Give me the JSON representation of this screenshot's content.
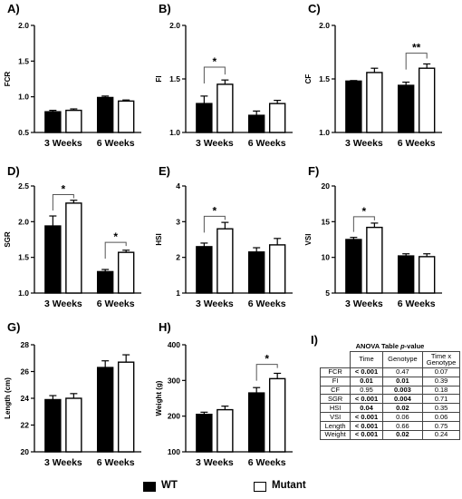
{
  "colors": {
    "wt": "#000000",
    "mutant": "#ffffff",
    "axis": "#000000"
  },
  "legend": {
    "wt": "WT",
    "mutant": "Mutant"
  },
  "chart_data": [
    {
      "type": "bar",
      "panel": "A)",
      "ylabel": "FCR",
      "ylim": [
        0.5,
        2.0
      ],
      "yticks": [
        "0.5",
        "1.0",
        "1.5",
        "2.0"
      ],
      "categories": [
        "3 Weeks",
        "6 Weeks"
      ],
      "series": [
        {
          "name": "WT",
          "values": [
            0.79,
            0.99
          ],
          "errors": [
            0.02,
            0.02
          ]
        },
        {
          "name": "Mutant",
          "values": [
            0.81,
            0.94
          ],
          "errors": [
            0.02,
            0.015
          ]
        }
      ],
      "significance": []
    },
    {
      "type": "bar",
      "panel": "B)",
      "ylabel": "FI",
      "ylim": [
        1.0,
        2.0
      ],
      "yticks": [
        "1.0",
        "1.5",
        "2.0"
      ],
      "categories": [
        "3 Weeks",
        "6 Weeks"
      ],
      "series": [
        {
          "name": "WT",
          "values": [
            1.27,
            1.16
          ],
          "errors": [
            0.07,
            0.04
          ]
        },
        {
          "name": "Mutant",
          "values": [
            1.45,
            1.27
          ],
          "errors": [
            0.04,
            0.03
          ]
        }
      ],
      "significance": [
        {
          "category": 0,
          "label": "*",
          "y": 1.61
        }
      ]
    },
    {
      "type": "bar",
      "panel": "C)",
      "ylabel": "CF",
      "ylim": [
        1.0,
        2.0
      ],
      "yticks": [
        "1.0",
        "1.5",
        "2.0"
      ],
      "categories": [
        "3 Weeks",
        "6 Weeks"
      ],
      "series": [
        {
          "name": "WT",
          "values": [
            1.48,
            1.44
          ],
          "errors": [
            0.005,
            0.03
          ]
        },
        {
          "name": "Mutant",
          "values": [
            1.56,
            1.6
          ],
          "errors": [
            0.04,
            0.04
          ]
        }
      ],
      "significance": [
        {
          "category": 1,
          "label": "**",
          "y": 1.74
        }
      ]
    },
    {
      "type": "bar",
      "panel": "D)",
      "ylabel": "SGR",
      "ylim": [
        1.0,
        2.5
      ],
      "yticks": [
        "1.0",
        "1.5",
        "2.0",
        "2.5"
      ],
      "categories": [
        "3 Weeks",
        "6 Weeks"
      ],
      "series": [
        {
          "name": "WT",
          "values": [
            1.94,
            1.3
          ],
          "errors": [
            0.14,
            0.03
          ]
        },
        {
          "name": "Mutant",
          "values": [
            2.26,
            1.57
          ],
          "errors": [
            0.04,
            0.03
          ]
        }
      ],
      "significance": [
        {
          "category": 0,
          "label": "*",
          "y": 2.38
        },
        {
          "category": 1,
          "label": "*",
          "y": 1.71
        }
      ]
    },
    {
      "type": "bar",
      "panel": "E)",
      "ylabel": "HSI",
      "ylim": [
        1,
        4
      ],
      "yticks": [
        "1",
        "2",
        "3",
        "4"
      ],
      "categories": [
        "3 Weeks",
        "6 Weeks"
      ],
      "series": [
        {
          "name": "WT",
          "values": [
            2.3,
            2.15
          ],
          "errors": [
            0.1,
            0.12
          ]
        },
        {
          "name": "Mutant",
          "values": [
            2.8,
            2.35
          ],
          "errors": [
            0.18,
            0.18
          ]
        }
      ],
      "significance": [
        {
          "category": 0,
          "label": "*",
          "y": 3.15
        }
      ]
    },
    {
      "type": "bar",
      "panel": "F)",
      "ylabel": "VSI",
      "ylim": [
        5,
        20
      ],
      "yticks": [
        "5",
        "10",
        "15",
        "20"
      ],
      "categories": [
        "3 Weeks",
        "6 Weeks"
      ],
      "series": [
        {
          "name": "WT",
          "values": [
            12.5,
            10.2
          ],
          "errors": [
            0.3,
            0.3
          ]
        },
        {
          "name": "Mutant",
          "values": [
            14.2,
            10.1
          ],
          "errors": [
            0.6,
            0.4
          ]
        }
      ],
      "significance": [
        {
          "category": 0,
          "label": "*",
          "y": 15.7
        }
      ]
    },
    {
      "type": "bar",
      "panel": "G)",
      "ylabel": "Length (cm)",
      "ylim": [
        20,
        28
      ],
      "yticks": [
        "20",
        "22",
        "24",
        "26",
        "28"
      ],
      "categories": [
        "3 Weeks",
        "6 Weeks"
      ],
      "series": [
        {
          "name": "WT",
          "values": [
            23.9,
            26.3
          ],
          "errors": [
            0.3,
            0.5
          ]
        },
        {
          "name": "Mutant",
          "values": [
            24.0,
            26.7
          ],
          "errors": [
            0.35,
            0.55
          ]
        }
      ],
      "significance": []
    },
    {
      "type": "bar",
      "panel": "H)",
      "ylabel": "Weight (g)",
      "ylim": [
        100,
        400
      ],
      "yticks": [
        "100",
        "200",
        "300",
        "400"
      ],
      "categories": [
        "3 Weeks",
        "6 Weeks"
      ],
      "series": [
        {
          "name": "WT",
          "values": [
            205,
            265
          ],
          "errors": [
            6,
            15
          ]
        },
        {
          "name": "Mutant",
          "values": [
            218,
            305
          ],
          "errors": [
            10,
            15
          ]
        }
      ],
      "significance": [
        {
          "category": 1,
          "label": "*",
          "y": 345
        }
      ]
    }
  ],
  "anova": {
    "panel": "I)",
    "title": "ANOVA Table ",
    "title_italic": "p",
    "title_end": "-value",
    "headers": [
      "",
      "Time",
      "Genotype",
      "Time x Genotype"
    ],
    "rows": [
      {
        "label": "FCR",
        "cells": [
          {
            "v": "< 0.001",
            "b": true
          },
          {
            "v": "0.47",
            "b": false
          },
          {
            "v": "0.07",
            "b": false
          }
        ]
      },
      {
        "label": "FI",
        "cells": [
          {
            "v": "0.01",
            "b": true
          },
          {
            "v": "0.01",
            "b": true
          },
          {
            "v": "0.39",
            "b": false
          }
        ]
      },
      {
        "label": "CF",
        "cells": [
          {
            "v": "0.95",
            "b": false
          },
          {
            "v": "0.003",
            "b": true
          },
          {
            "v": "0.18",
            "b": false
          }
        ]
      },
      {
        "label": "SGR",
        "cells": [
          {
            "v": "< 0.001",
            "b": true
          },
          {
            "v": "0.004",
            "b": true
          },
          {
            "v": "0.71",
            "b": false
          }
        ]
      },
      {
        "label": "HSI",
        "cells": [
          {
            "v": "0.04",
            "b": true
          },
          {
            "v": "0.02",
            "b": true
          },
          {
            "v": "0.35",
            "b": false
          }
        ]
      },
      {
        "label": "VSI",
        "cells": [
          {
            "v": "< 0.001",
            "b": true
          },
          {
            "v": "0.06",
            "b": false
          },
          {
            "v": "0.06",
            "b": false
          }
        ]
      },
      {
        "label": "Length",
        "cells": [
          {
            "v": "< 0.001",
            "b": true
          },
          {
            "v": "0.66",
            "b": false
          },
          {
            "v": "0.75",
            "b": false
          }
        ]
      },
      {
        "label": "Weight",
        "cells": [
          {
            "v": "< 0.001",
            "b": true
          },
          {
            "v": "0.02",
            "b": true
          },
          {
            "v": "0.24",
            "b": false
          }
        ]
      }
    ]
  }
}
